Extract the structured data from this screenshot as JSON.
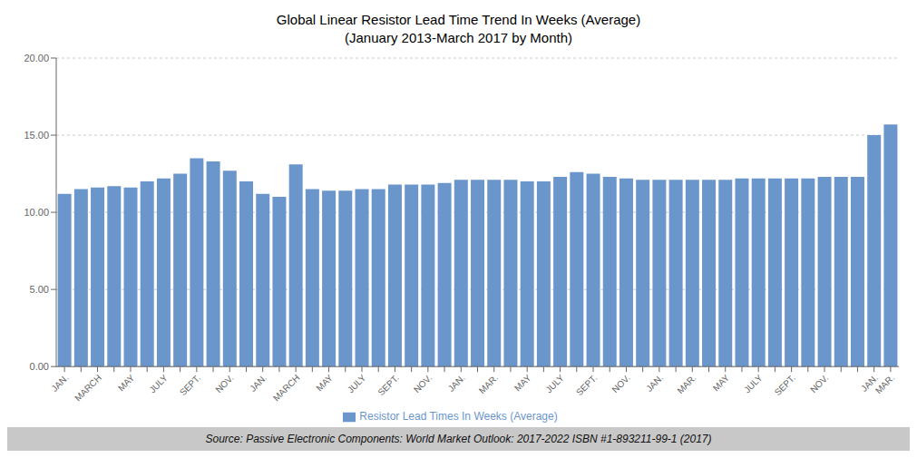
{
  "chart_data": {
    "type": "bar",
    "title": "Global Linear Resistor Lead Time Trend In Weeks (Average)\n(January 2013-March 2017 by Month)",
    "source": "Source: Passive Electronic Components: World Market Outlook: 2017-2022 ISBN #1-893211-99-1 (2017)",
    "categories": [
      "JAN.",
      null,
      "MARCH",
      null,
      "MAY",
      null,
      "JULY",
      null,
      "SEPT.",
      null,
      "NOV.",
      null,
      "JAN.",
      null,
      "MARCH",
      null,
      "MAY",
      null,
      "JULY",
      null,
      "SEPT.",
      null,
      "NOV.",
      null,
      "JAN.",
      null,
      "MAR.",
      null,
      "MAY",
      null,
      "JULY",
      null,
      "SEPT.",
      null,
      "NOV.",
      null,
      "JAN.",
      null,
      "MAR.",
      null,
      "MAY",
      null,
      "JULY",
      null,
      "SEPT.",
      null,
      "NOV.",
      null,
      null,
      "JAN.",
      "MAR."
    ],
    "series": [
      {
        "name": "Resistor Lead Times In Weeks (Average)",
        "color": "#6B96CC",
        "values": [
          11.2,
          11.5,
          11.6,
          11.7,
          11.6,
          12.0,
          12.2,
          12.5,
          13.5,
          13.3,
          12.7,
          12.0,
          11.2,
          11.0,
          13.1,
          11.5,
          11.4,
          11.4,
          11.5,
          11.5,
          11.8,
          11.8,
          11.8,
          11.9,
          12.1,
          12.1,
          12.1,
          12.1,
          12.0,
          12.0,
          12.3,
          12.6,
          12.5,
          12.3,
          12.2,
          12.1,
          12.1,
          12.1,
          12.1,
          12.1,
          12.1,
          12.2,
          12.2,
          12.2,
          12.2,
          12.2,
          12.3,
          12.3,
          12.3,
          15.0,
          15.7
        ]
      }
    ],
    "ylim": [
      0,
      20
    ],
    "yticks": [
      {
        "value": 0,
        "label": "0.00"
      },
      {
        "value": 5,
        "label": "5.00"
      },
      {
        "value": 10,
        "label": "10.00"
      },
      {
        "value": 15,
        "label": "15.00"
      },
      {
        "value": 20,
        "label": "20.00"
      }
    ],
    "grid": true,
    "legend": "bottom"
  }
}
